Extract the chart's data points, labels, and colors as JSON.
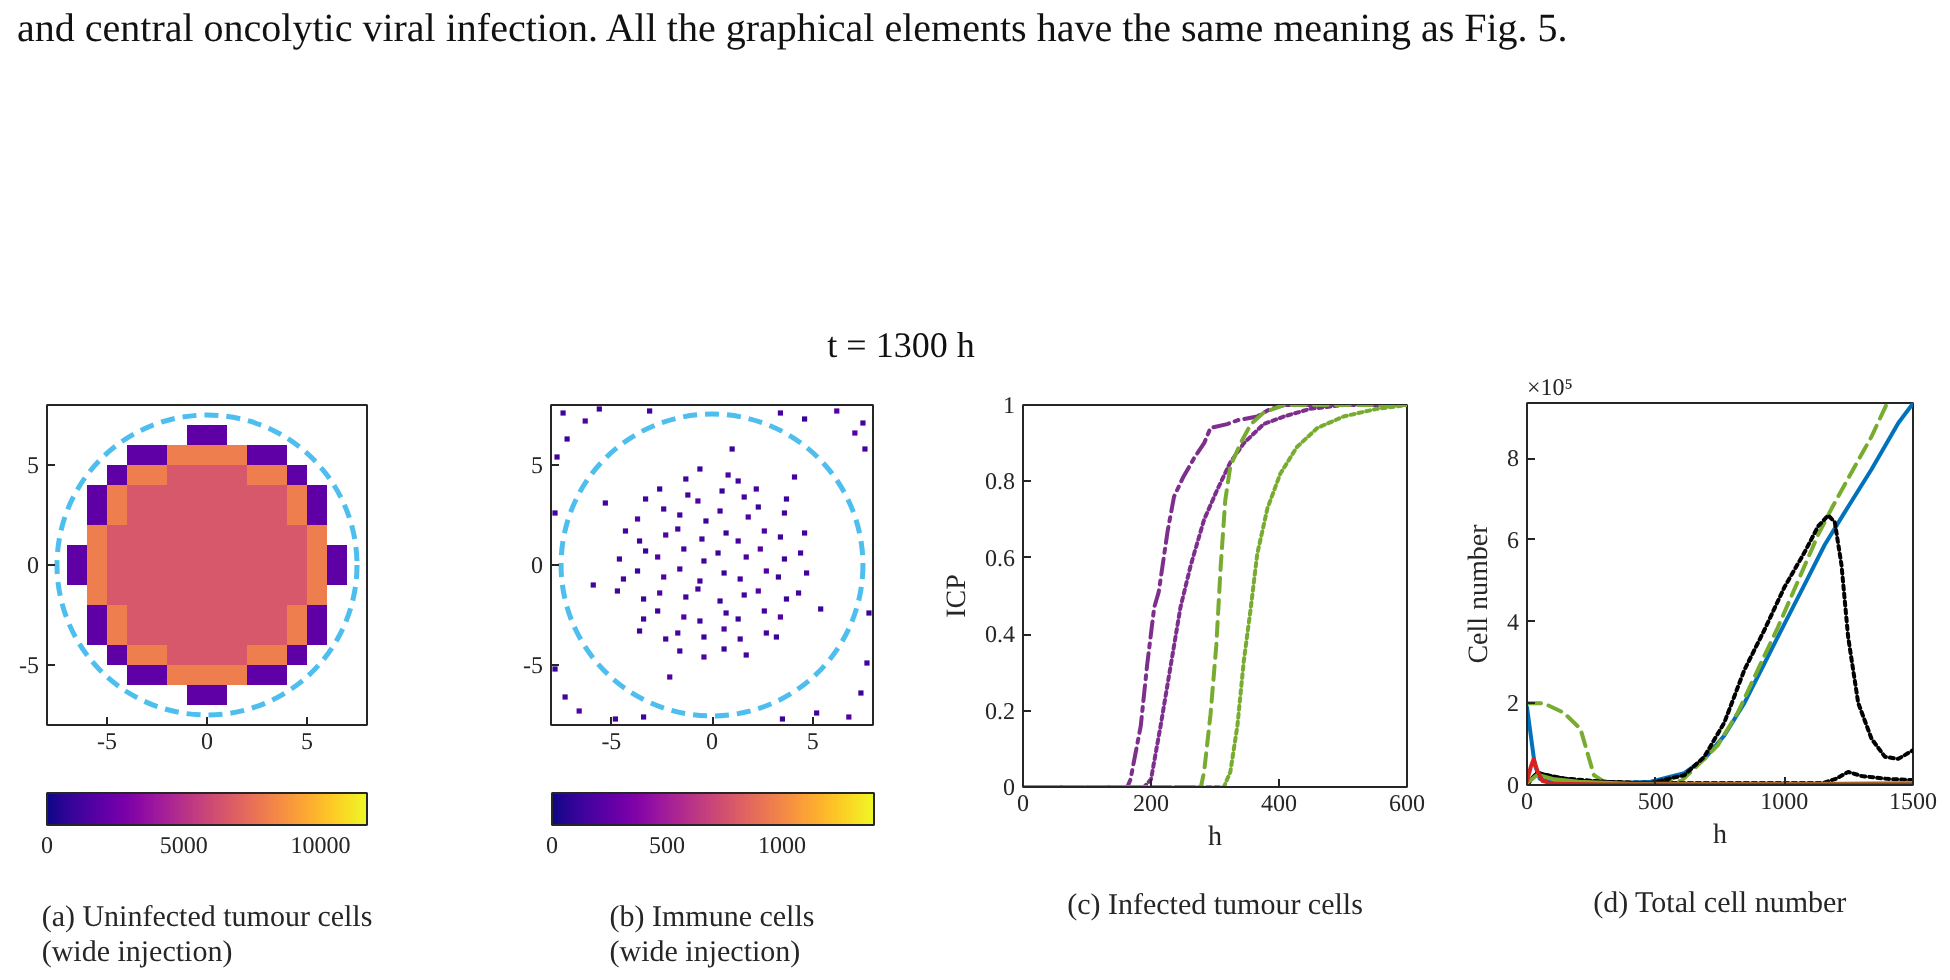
{
  "chart_data": [
    {
      "type": "other",
      "title": "t = 1300 h",
      "annotations": [
        "and central oncolytic viral infection. All the graphical elements have the same meaning as Fig. 5."
      ]
    },
    {
      "type": "scatter",
      "title": "(a) Uninfected tumour cells\n(wide injection)",
      "xlim": [
        -8,
        8
      ],
      "ylim": [
        -8,
        8
      ],
      "xticks": [
        -5,
        0,
        5
      ],
      "yticks": [
        -5,
        0,
        5
      ],
      "clim": [
        0,
        11700
      ],
      "cticks": [
        0,
        5000,
        10000
      ],
      "marker": "square",
      "x": [
        -0.5,
        0.5,
        -3.5,
        -2.5,
        -1.5,
        -0.5,
        0.5,
        1.5,
        2.5,
        3.5,
        -4.5,
        -3.5,
        -2.5,
        -1.5,
        -0.5,
        0.5,
        1.5,
        2.5,
        3.5,
        4.5,
        -5.5,
        -4.5,
        -3.5,
        -2.5,
        -1.5,
        -0.5,
        0.5,
        1.5,
        2.5,
        3.5,
        4.5,
        5.5,
        -5.5,
        -4.5,
        -3.5,
        -2.5,
        -1.5,
        -0.5,
        0.5,
        1.5,
        2.5,
        3.5,
        4.5,
        5.5,
        -5.5,
        -4.5,
        -3.5,
        -2.5,
        -1.5,
        -0.5,
        0.5,
        1.5,
        2.5,
        3.5,
        4.5,
        5.5,
        -6.5,
        -5.5,
        -4.5,
        -3.5,
        -2.5,
        -1.5,
        -0.5,
        0.5,
        1.5,
        2.5,
        3.5,
        4.5,
        5.5,
        6.5,
        -6.5,
        -5.5,
        -4.5,
        -3.5,
        -2.5,
        -1.5,
        -0.5,
        0.5,
        1.5,
        2.5,
        3.5,
        4.5,
        5.5,
        6.5,
        -5.5,
        -4.5,
        -3.5,
        -2.5,
        -1.5,
        -0.5,
        0.5,
        1.5,
        2.5,
        3.5,
        4.5,
        5.5,
        -5.5,
        -4.5,
        -3.5,
        -2.5,
        -1.5,
        -0.5,
        0.5,
        1.5,
        2.5,
        3.5,
        4.5,
        5.5,
        -5.5,
        -4.5,
        -3.5,
        -2.5,
        -1.5,
        -0.5,
        0.5,
        1.5,
        2.5,
        3.5,
        4.5,
        5.5,
        -4.5,
        -3.5,
        -2.5,
        -1.5,
        -0.5,
        0.5,
        1.5,
        2.5,
        3.5,
        4.5,
        -3.5,
        -2.5,
        -1.5,
        -0.5,
        0.5,
        1.5,
        2.5,
        3.5,
        -0.5,
        0.5
      ],
      "values": [
        6.5,
        6.5,
        5.5,
        5.5,
        5.5,
        5.5,
        5.5,
        5.5,
        5.5,
        5.5,
        4.5,
        4.5,
        4.5,
        4.5,
        4.5,
        4.5,
        4.5,
        4.5,
        4.5,
        4.5,
        3.5,
        3.5,
        3.5,
        3.5,
        3.5,
        3.5,
        3.5,
        3.5,
        3.5,
        3.5,
        3.5,
        3.5,
        2.5,
        2.5,
        2.5,
        2.5,
        2.5,
        2.5,
        2.5,
        2.5,
        2.5,
        2.5,
        2.5,
        2.5,
        1.5,
        1.5,
        1.5,
        1.5,
        1.5,
        1.5,
        1.5,
        1.5,
        1.5,
        1.5,
        1.5,
        1.5,
        0.5,
        0.5,
        0.5,
        0.5,
        0.5,
        0.5,
        0.5,
        0.5,
        0.5,
        0.5,
        0.5,
        0.5,
        0.5,
        0.5,
        -0.5,
        -0.5,
        -0.5,
        -0.5,
        -0.5,
        -0.5,
        -0.5,
        -0.5,
        -0.5,
        -0.5,
        -0.5,
        -0.5,
        -0.5,
        -0.5,
        -1.5,
        -1.5,
        -1.5,
        -1.5,
        -1.5,
        -1.5,
        -1.5,
        -1.5,
        -1.5,
        -1.5,
        -1.5,
        -1.5,
        -2.5,
        -2.5,
        -2.5,
        -2.5,
        -2.5,
        -2.5,
        -2.5,
        -2.5,
        -2.5,
        -2.5,
        -2.5,
        -2.5,
        -3.5,
        -3.5,
        -3.5,
        -3.5,
        -3.5,
        -3.5,
        -3.5,
        -3.5,
        -3.5,
        -3.5,
        -3.5,
        -3.5,
        -4.5,
        -4.5,
        -4.5,
        -4.5,
        -4.5,
        -4.5,
        -4.5,
        -4.5,
        -4.5,
        -4.5,
        -5.5,
        -5.5,
        -5.5,
        -5.5,
        -5.5,
        -5.5,
        -5.5,
        -5.5,
        -6.5,
        -6.5
      ],
      "cvalues": [
        2000,
        2000,
        2000,
        2000,
        8000,
        8000,
        8000,
        8000,
        2000,
        2000,
        2000,
        8000,
        8000,
        6500,
        6500,
        6500,
        6500,
        8000,
        8000,
        2000,
        2000,
        8000,
        6500,
        6500,
        6500,
        6500,
        6500,
        6500,
        6500,
        6500,
        8000,
        2000,
        2000,
        8000,
        6500,
        6500,
        6500,
        6500,
        6500,
        6500,
        6500,
        6500,
        8000,
        2000,
        8000,
        6500,
        6500,
        6500,
        6500,
        6500,
        6500,
        6500,
        6500,
        6500,
        6500,
        8000,
        2000,
        8000,
        6500,
        6500,
        6500,
        6500,
        6500,
        6500,
        6500,
        6500,
        6500,
        6500,
        8000,
        2000,
        2000,
        8000,
        6500,
        6500,
        6500,
        6500,
        6500,
        6500,
        6500,
        6500,
        6500,
        6500,
        8000,
        2000,
        8000,
        6500,
        6500,
        6500,
        6500,
        6500,
        6500,
        6500,
        6500,
        6500,
        6500,
        8000,
        2000,
        8000,
        6500,
        6500,
        6500,
        6500,
        6500,
        6500,
        6500,
        6500,
        8000,
        2000,
        2000,
        8000,
        6500,
        6500,
        6500,
        6500,
        6500,
        6500,
        6500,
        6500,
        8000,
        2000,
        2000,
        8000,
        8000,
        6500,
        6500,
        6500,
        6500,
        8000,
        8000,
        2000,
        2000,
        2000,
        8000,
        8000,
        8000,
        8000,
        2000,
        2000,
        2000,
        2000
      ]
    },
    {
      "type": "scatter",
      "title": "(b) Immune cells\n(wide injection)",
      "xlim": [
        -8,
        8
      ],
      "ylim": [
        -8,
        8
      ],
      "xticks": [
        -5,
        0,
        5
      ],
      "yticks": [
        -5,
        0,
        5
      ],
      "clim": [
        0,
        1400
      ],
      "cticks": [
        0,
        500,
        1000
      ],
      "marker": "square",
      "x": [
        -1.3,
        -0.6,
        0.8,
        1.3,
        -3.3,
        -2.6,
        -1.2,
        -0.7,
        0.5,
        1.6,
        2.2,
        3.7,
        -3.7,
        -2.4,
        -1.6,
        -0.3,
        0.4,
        1.8,
        2.3,
        3.6,
        -4.3,
        -3.6,
        -2.3,
        -1.7,
        -0.5,
        0.7,
        1.3,
        2.6,
        3.4,
        4.6,
        -4.6,
        -3.3,
        -2.7,
        -1.4,
        -0.4,
        0.3,
        1.7,
        2.4,
        3.6,
        4.4,
        -4.4,
        -3.7,
        -2.4,
        -1.6,
        -0.6,
        0.6,
        1.4,
        2.7,
        3.3,
        4.7,
        -4.7,
        -3.4,
        -2.6,
        -1.3,
        -0.7,
        0.4,
        1.6,
        2.3,
        3.7,
        4.3,
        -3.4,
        -2.7,
        -1.4,
        -0.6,
        0.7,
        1.3,
        2.6,
        3.4,
        -3.6,
        -2.3,
        -1.7,
        -0.4,
        0.6,
        1.4,
        2.7,
        3.2,
        -1.6,
        -0.4,
        0.6,
        1.7,
        -5.3,
        5.4,
        -2.1,
        4.1,
        -5.9,
        1.0,
        -7.4,
        -6.3,
        -5.6,
        -3.1,
        3.4,
        4.6,
        6.2,
        7.5,
        -7.7,
        -7.2,
        7.6,
        7.1,
        -7.8,
        -7.3,
        7.7,
        7.4,
        -6.6,
        -4.8,
        -3.4,
        3.5,
        5.2,
        6.8,
        7.8,
        -7.8
      ],
      "values": [
        4.3,
        4.8,
        4.5,
        4.2,
        3.3,
        3.8,
        3.5,
        3.2,
        3.7,
        3.4,
        3.8,
        3.3,
        2.3,
        2.8,
        2.5,
        2.2,
        2.7,
        2.4,
        2.9,
        2.6,
        1.7,
        1.2,
        1.5,
        1.8,
        1.3,
        1.6,
        1.2,
        1.7,
        1.4,
        1.6,
        0.3,
        0.7,
        0.4,
        0.8,
        0.2,
        0.6,
        0.4,
        0.8,
        0.3,
        0.6,
        -0.7,
        -0.3,
        -0.6,
        -0.2,
        -0.8,
        -0.4,
        -0.7,
        -0.3,
        -0.6,
        -0.4,
        -1.3,
        -1.7,
        -1.4,
        -1.6,
        -1.2,
        -1.8,
        -1.5,
        -1.3,
        -1.7,
        -1.4,
        -2.7,
        -2.3,
        -2.6,
        -2.8,
        -2.4,
        -2.7,
        -2.3,
        -2.6,
        -3.3,
        -3.7,
        -3.4,
        -3.6,
        -3.2,
        -3.7,
        -3.4,
        -3.6,
        -4.3,
        -4.6,
        -4.2,
        -4.5,
        3.1,
        -2.2,
        -5.6,
        4.4,
        -1.0,
        5.8,
        7.6,
        7.2,
        7.8,
        7.7,
        7.6,
        7.3,
        7.7,
        7.1,
        5.4,
        6.3,
        5.8,
        6.6,
        -5.2,
        -6.6,
        -4.9,
        -6.4,
        -7.3,
        -7.7,
        -7.6,
        -7.7,
        -7.4,
        -7.6,
        -2.4,
        2.6
      ],
      "cvalues": [
        150,
        120,
        200,
        150,
        150,
        120,
        150,
        200,
        120,
        150,
        150,
        120,
        200,
        150,
        150,
        120,
        150,
        200,
        120,
        150,
        150,
        120,
        200,
        150,
        150,
        120,
        150,
        200,
        120,
        150,
        150,
        120,
        200,
        150,
        150,
        120,
        150,
        200,
        120,
        150,
        150,
        120,
        200,
        150,
        150,
        120,
        150,
        200,
        120,
        150,
        150,
        120,
        200,
        150,
        150,
        120,
        150,
        200,
        120,
        150,
        150,
        120,
        200,
        150,
        150,
        120,
        150,
        200,
        120,
        150,
        150,
        120,
        200,
        150,
        150,
        120,
        150,
        200,
        120,
        150,
        150,
        120,
        200,
        150,
        150,
        120,
        150,
        200,
        120,
        150,
        150,
        120,
        200,
        150,
        150,
        120,
        150,
        200,
        120,
        150,
        150,
        120,
        200,
        150,
        150,
        120,
        150,
        200,
        120,
        150
      ]
    },
    {
      "type": "line",
      "title": "(c) Infected tumour cells",
      "xlabel": "h",
      "ylabel": "ICP",
      "xlim": [
        0,
        600
      ],
      "ylim": [
        0,
        1
      ],
      "xticks": [
        0,
        200,
        400,
        600
      ],
      "yticks": [
        0,
        0.2,
        0.4,
        0.6,
        0.8,
        1
      ],
      "series": [
        {
          "color": "#7e2f8e",
          "line_style": "dashdot",
          "x": [
            0,
            163,
            168,
            184,
            194,
            205,
            212,
            226,
            236,
            250,
            267,
            283,
            293,
            319,
            335,
            366,
            387,
            408,
            600
          ],
          "values": [
            0,
            0,
            0.02,
            0.16,
            0.32,
            0.47,
            0.51,
            0.67,
            0.76,
            0.81,
            0.86,
            0.9,
            0.94,
            0.95,
            0.96,
            0.97,
            0.99,
            1,
            1
          ]
        },
        {
          "color": "#7e2f8e",
          "line_style": "dotted",
          "x": [
            0,
            189,
            200,
            215,
            231,
            246,
            262,
            283,
            304,
            324,
            345,
            376,
            408,
            449,
            501,
            600
          ],
          "values": [
            0,
            0,
            0.02,
            0.16,
            0.32,
            0.47,
            0.58,
            0.7,
            0.78,
            0.85,
            0.9,
            0.95,
            0.97,
            0.99,
            1,
            1
          ]
        },
        {
          "color": "#77ac30",
          "line_style": "dashed",
          "x": [
            0,
            278,
            283,
            293,
            302,
            309,
            316,
            324,
            340,
            356,
            376,
            408,
            600
          ],
          "values": [
            0,
            0,
            0.04,
            0.19,
            0.37,
            0.58,
            0.75,
            0.84,
            0.9,
            0.95,
            0.98,
            1,
            1
          ]
        },
        {
          "color": "#77ac30",
          "line_style": "dotted",
          "x": [
            0,
            314,
            324,
            335,
            345,
            356,
            366,
            382,
            402,
            428,
            460,
            501,
            553,
            600
          ],
          "values": [
            0,
            0,
            0.04,
            0.16,
            0.33,
            0.47,
            0.61,
            0.73,
            0.82,
            0.89,
            0.94,
            0.97,
            0.99,
            1
          ]
        }
      ]
    },
    {
      "type": "line",
      "title": "(d) Total cell number",
      "xlabel": "h",
      "ylabel": "Cell number",
      "annotations": [
        "×10⁵"
      ],
      "xlim": [
        0,
        1500
      ],
      "ylim": [
        0,
        9.35
      ],
      "xticks": [
        0,
        500,
        1000,
        1500
      ],
      "yticks": [
        0,
        2,
        4,
        6,
        8
      ],
      "series": [
        {
          "color": "#0072bd",
          "line_style": "solid",
          "x": [
            0,
            15,
            30,
            50,
            100,
            300,
            481,
            611,
            689,
            767,
            845,
            923,
            1001,
            1079,
            1157,
            1235,
            1339,
            1443,
            1500
          ],
          "values": [
            1.9,
            1.2,
            0.5,
            0.15,
            0.05,
            0.03,
            0.08,
            0.29,
            0.64,
            1.21,
            2.01,
            2.98,
            3.95,
            4.91,
            5.88,
            6.68,
            7.73,
            8.86,
            9.34
          ]
        },
        {
          "color": "#77ac30",
          "line_style": "dashed",
          "x": [
            0,
            65,
            143,
            208,
            260,
            299,
            400,
            500,
            600,
            663,
            741,
            819,
            897,
            975,
            1053,
            1131,
            1183,
            1261,
            1339,
            1399
          ],
          "values": [
            2.0,
            2.0,
            1.77,
            1.37,
            0.24,
            0.08,
            0.05,
            0.05,
            0.1,
            0.48,
            0.97,
            1.77,
            2.82,
            3.86,
            4.99,
            6.12,
            6.76,
            7.65,
            8.53,
            9.34
          ]
        },
        {
          "color": "#000000",
          "line_style": "dotted",
          "x": [
            0,
            39,
            143,
            299,
            481,
            611,
            689,
            767,
            845,
            923,
            1001,
            1079,
            1131,
            1170,
            1196,
            1222,
            1248,
            1287,
            1339,
            1391,
            1443,
            1500
          ],
          "values": [
            0.05,
            0.29,
            0.16,
            0.08,
            0.05,
            0.24,
            0.69,
            1.53,
            2.82,
            3.8,
            4.85,
            5.7,
            6.33,
            6.6,
            6.44,
            5.39,
            3.62,
            2.01,
            1.13,
            0.69,
            0.64,
            0.85
          ]
        },
        {
          "color": "#000000",
          "line_style": "dotted",
          "x": [
            0,
            39,
            100,
            200,
            400,
            800,
            1150,
            1200,
            1248,
            1300,
            1400,
            1500
          ],
          "values": [
            0.0,
            0.3,
            0.2,
            0.1,
            0.05,
            0.05,
            0.05,
            0.15,
            0.32,
            0.22,
            0.15,
            0.12
          ]
        },
        {
          "color": "#77ac30",
          "line_style": "solid",
          "x": [
            0,
            40,
            100,
            200,
            400,
            1200,
            1500
          ],
          "values": [
            0.05,
            0.25,
            0.15,
            0.08,
            0.03,
            0.03,
            0.05
          ]
        },
        {
          "color": "#d92020",
          "line_style": "solid",
          "x": [
            0,
            15,
            26,
            40,
            60,
            100,
            300,
            800,
            1500
          ],
          "values": [
            0.1,
            0.45,
            0.64,
            0.35,
            0.1,
            0.03,
            0.01,
            0.01,
            0.01
          ]
        }
      ]
    }
  ]
}
